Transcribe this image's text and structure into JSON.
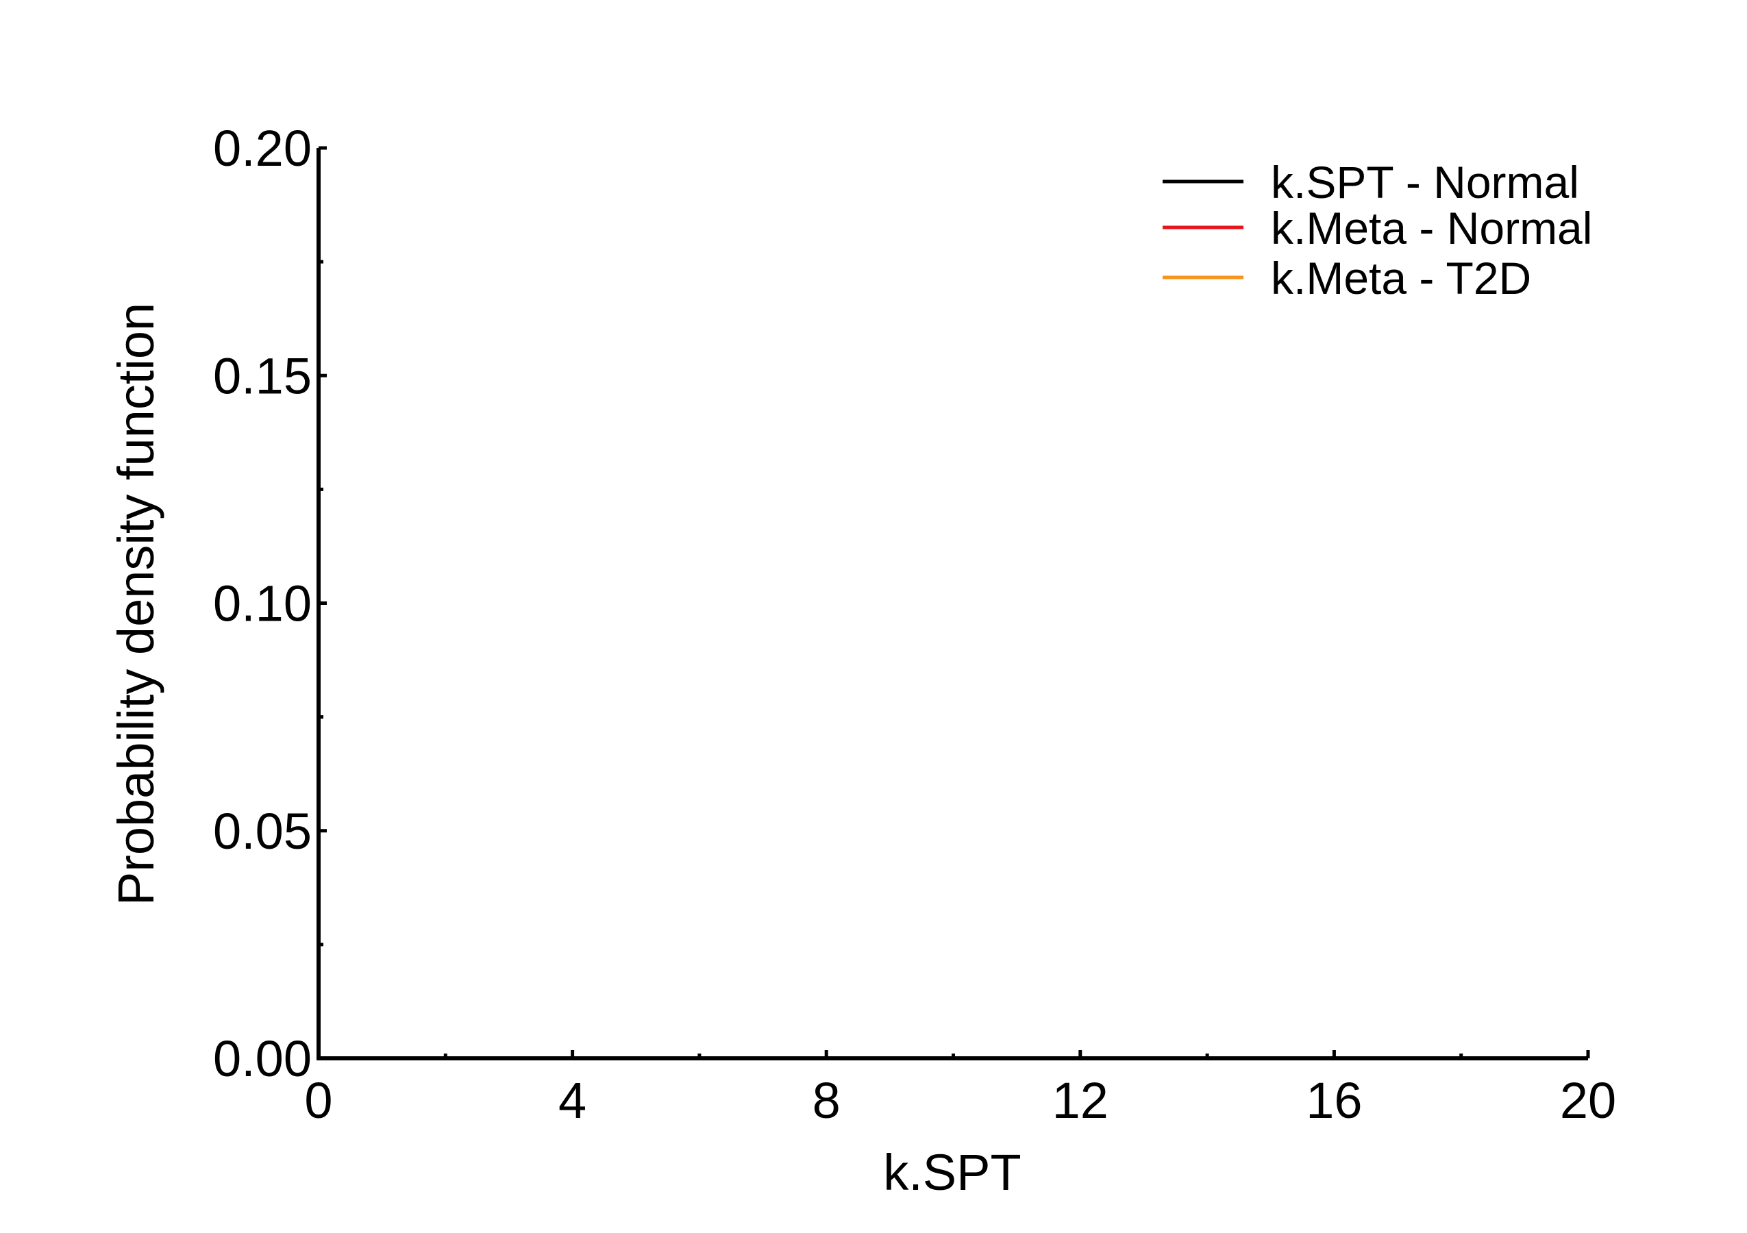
{
  "chart_data": {
    "type": "line",
    "title": "",
    "xlabel": "k.SPT",
    "ylabel": "Probability density function",
    "xlim": [
      0,
      20
    ],
    "ylim": [
      0,
      0.2
    ],
    "x_ticks": [
      0,
      4,
      8,
      12,
      16,
      20
    ],
    "x_tick_labels": [
      "0",
      "4",
      "8",
      "12",
      "16",
      "20"
    ],
    "x_minor_ticks": [
      2,
      6,
      10,
      14,
      18
    ],
    "y_ticks": [
      0,
      0.05,
      0.1,
      0.15,
      0.2
    ],
    "y_tick_labels": [
      "0.00",
      "0.05",
      "0.10",
      "0.15",
      "0.20"
    ],
    "y_minor_ticks": [
      0.025,
      0.075,
      0.125,
      0.175
    ],
    "grid": false,
    "legend_position": "top-right",
    "series": [
      {
        "name": "k.SPT - Normal",
        "color": "#000000",
        "x": [],
        "y": []
      },
      {
        "name": "k.Meta - Normal",
        "color": "#e8141c",
        "x": [],
        "y": []
      },
      {
        "name": "k.Meta - T2D",
        "color": "#f7941d",
        "x": [],
        "y": []
      }
    ]
  }
}
